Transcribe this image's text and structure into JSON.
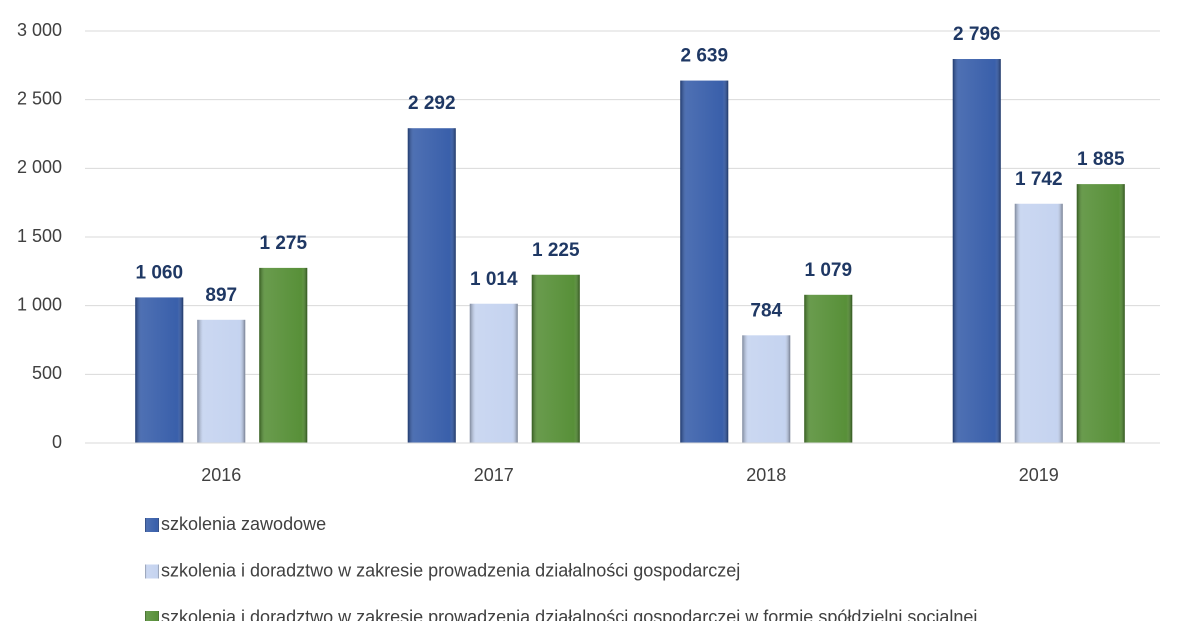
{
  "chart_data": {
    "type": "bar",
    "categories": [
      "2016",
      "2017",
      "2018",
      "2019"
    ],
    "series": [
      {
        "name": "szkolenia zawodowe",
        "color": "#2f57a6",
        "values": [
          1060,
          2292,
          2639,
          2796
        ],
        "value_labels": [
          "1 060",
          "2 292",
          "2 639",
          "2 796"
        ]
      },
      {
        "name": "szkolenia i doradztwo w zakresie prowadzenia działalności gospodarczej",
        "color": "#c2d1ef",
        "values": [
          897,
          1014,
          784,
          1742
        ],
        "value_labels": [
          "897",
          "1 014",
          "784",
          "1 742"
        ]
      },
      {
        "name": "szkolenia i doradztwo w zakresie prowadzenia działalności gospodarczej w formie spółdzielni socjalnej",
        "color": "#4f8a2e",
        "values": [
          1275,
          1225,
          1079,
          1885
        ],
        "value_labels": [
          "1 275",
          "1 225",
          "1 079",
          "1 885"
        ]
      }
    ],
    "ylim": [
      0,
      3000
    ],
    "yticks": [
      0,
      500,
      {
        "value": 1000,
        "label": "1 000"
      },
      {
        "value": 1500,
        "label": "1 500"
      },
      {
        "value": 2000,
        "label": "2 000"
      },
      {
        "value": 2500,
        "label": "2 500"
      },
      {
        "value": 3000,
        "label": "3 000"
      }
    ],
    "grid": true
  }
}
